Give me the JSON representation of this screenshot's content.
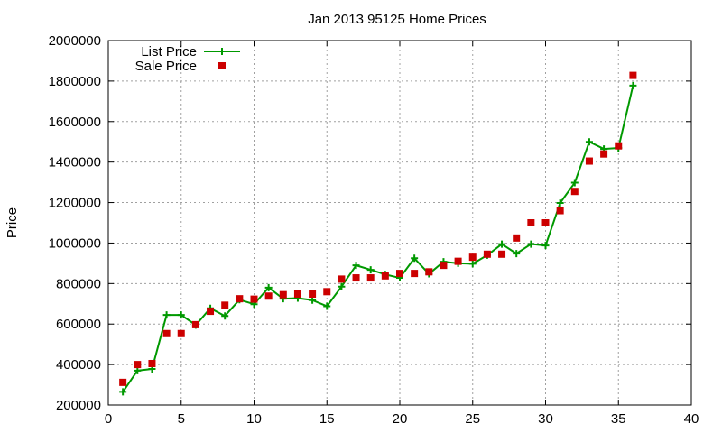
{
  "chart_data": {
    "type": "line",
    "title": "Jan 2013 95125 Home Prices",
    "xlabel": "",
    "ylabel": "Price",
    "xlim": [
      0,
      40
    ],
    "ylim": [
      200000,
      2000000
    ],
    "x_ticks": [
      "0",
      "5",
      "10",
      "15",
      "20",
      "25",
      "30",
      "35",
      "40"
    ],
    "y_ticks": [
      "200000",
      "400000",
      "600000",
      "800000",
      "1000000",
      "1200000",
      "1400000",
      "1600000",
      "1800000",
      "2000000"
    ],
    "grid": true,
    "legend_position": "top-left",
    "x": [
      1,
      2,
      3,
      4,
      5,
      6,
      7,
      8,
      9,
      10,
      11,
      12,
      13,
      14,
      15,
      16,
      17,
      18,
      19,
      20,
      21,
      22,
      23,
      24,
      25,
      26,
      27,
      28,
      29,
      30,
      31,
      32,
      33,
      34,
      35,
      36
    ],
    "series": [
      {
        "name": "List Price",
        "style": "line-plus",
        "color": "#009900",
        "values": [
          265000,
          370000,
          378000,
          645000,
          645000,
          595000,
          678000,
          640000,
          720000,
          698000,
          780000,
          725000,
          728000,
          718000,
          688000,
          785000,
          890000,
          868000,
          845000,
          828000,
          925000,
          848000,
          908000,
          900000,
          898000,
          940000,
          995000,
          948000,
          995000,
          988000,
          1198000,
          1298000,
          1500000,
          1465000,
          1470000,
          1778000
        ]
      },
      {
        "name": "Sale Price",
        "style": "point-square",
        "color": "#cc0000",
        "values": [
          312000,
          400000,
          405000,
          553000,
          553000,
          597000,
          663000,
          693000,
          725000,
          723000,
          738000,
          745000,
          748000,
          748000,
          760000,
          822000,
          828000,
          828000,
          838000,
          850000,
          850000,
          858000,
          890000,
          910000,
          930000,
          945000,
          945000,
          1025000,
          1100000,
          1100000,
          1160000,
          1255000,
          1405000,
          1440000,
          1480000,
          1828000
        ]
      }
    ]
  }
}
